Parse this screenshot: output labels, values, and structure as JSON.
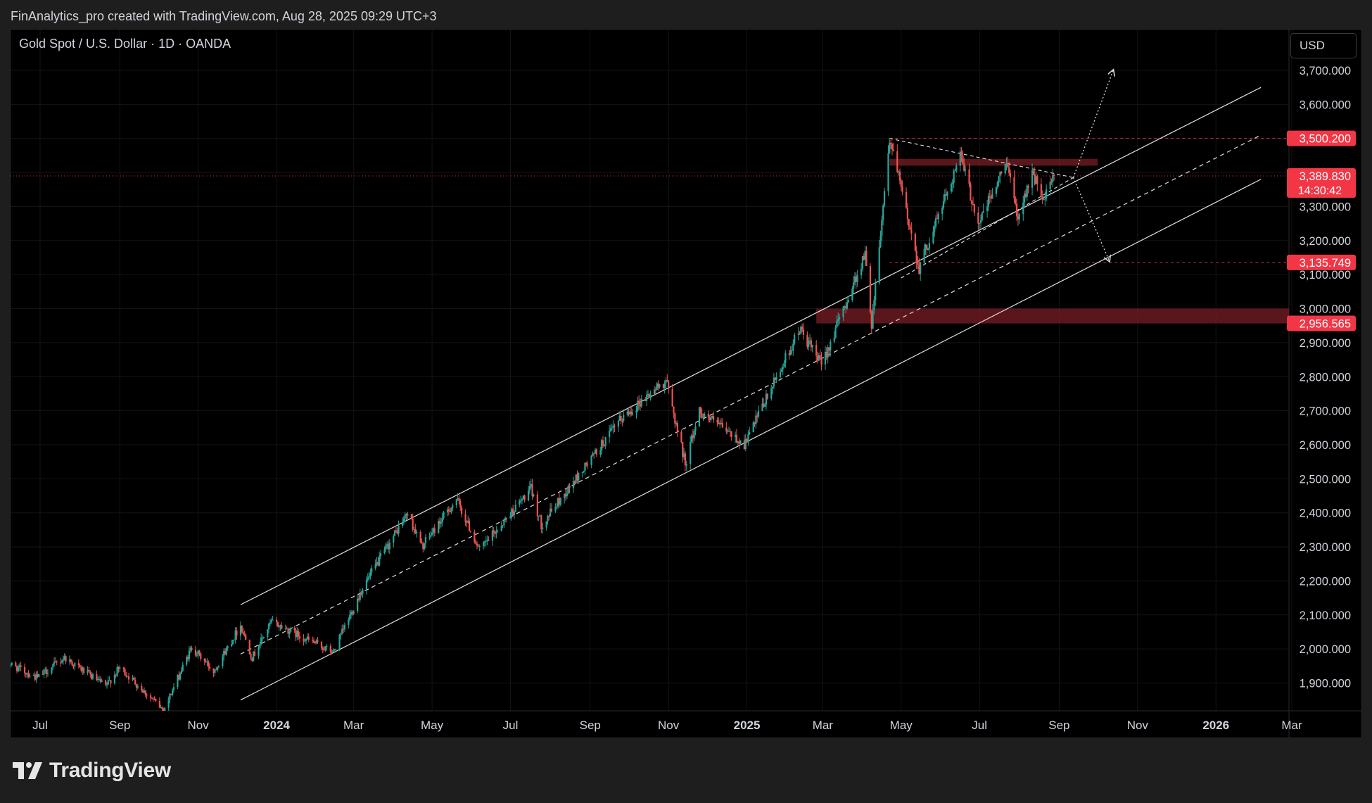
{
  "header": {
    "attribution": "FinAnalytics_pro created with TradingView.com, Aug 28, 2025 09:29 UTC+3"
  },
  "symbol": {
    "label": "Gold Spot / U.S. Dollar · 1D · OANDA"
  },
  "toolbar": {
    "currency_label": "USD"
  },
  "footer": {
    "brand": "TradingView"
  },
  "colors": {
    "background": "#000000",
    "frame": "#1e1e1e",
    "up_candle": "#26a69a",
    "down_candle": "#ef5350",
    "tag_red": "#f23645",
    "zone_red": "#7a1d25",
    "channel": "#e0e0e0",
    "grid": "#141414"
  },
  "chart_data": {
    "type": "candlestick",
    "title": "Gold Spot / U.S. Dollar · 1D · OANDA",
    "currency": "USD",
    "y_axis": {
      "ticks": [
        1900,
        2000,
        2100,
        2200,
        2300,
        2400,
        2500,
        2600,
        2700,
        2800,
        2900,
        3000,
        3100,
        3200,
        3300,
        3400,
        3500,
        3600,
        3700
      ],
      "tick_labels": [
        "1,900.000",
        "2,000.000",
        "2,100.000",
        "2,200.000",
        "2,300.000",
        "2,400.000",
        "2,500.000",
        "2,600.000",
        "2,700.000",
        "2,800.000",
        "2,900.000",
        "3,000.000",
        "3,100.000",
        "3,200.000",
        "3,300.000",
        "3,400.000",
        "3,500.000",
        "3,600.000",
        "3,700.000"
      ],
      "range": [
        1825,
        3750
      ]
    },
    "x_axis": {
      "tick_labels": [
        {
          "date": "2023-07-01",
          "label": "Jul",
          "bold": false
        },
        {
          "date": "2023-09-01",
          "label": "Sep",
          "bold": false
        },
        {
          "date": "2023-11-01",
          "label": "Nov",
          "bold": false
        },
        {
          "date": "2024-01-01",
          "label": "2024",
          "bold": true
        },
        {
          "date": "2024-03-01",
          "label": "Mar",
          "bold": false
        },
        {
          "date": "2024-05-01",
          "label": "May",
          "bold": false
        },
        {
          "date": "2024-07-01",
          "label": "Jul",
          "bold": false
        },
        {
          "date": "2024-09-01",
          "label": "Sep",
          "bold": false
        },
        {
          "date": "2024-11-01",
          "label": "Nov",
          "bold": false
        },
        {
          "date": "2025-01-01",
          "label": "2025",
          "bold": true
        },
        {
          "date": "2025-03-01",
          "label": "Mar",
          "bold": false
        },
        {
          "date": "2025-05-01",
          "label": "May",
          "bold": false
        },
        {
          "date": "2025-07-01",
          "label": "Jul",
          "bold": false
        },
        {
          "date": "2025-09-01",
          "label": "Sep",
          "bold": false
        },
        {
          "date": "2025-11-01",
          "label": "Nov",
          "bold": false
        },
        {
          "date": "2026-01-01",
          "label": "2026",
          "bold": true
        },
        {
          "date": "2026-03-01",
          "label": "Mar",
          "bold": false
        }
      ]
    },
    "price_path": [
      {
        "date": "2023-06-05",
        "price": 1960
      },
      {
        "date": "2023-06-29",
        "price": 1915
      },
      {
        "date": "2023-07-20",
        "price": 1975
      },
      {
        "date": "2023-08-21",
        "price": 1890
      },
      {
        "date": "2023-09-01",
        "price": 1945
      },
      {
        "date": "2023-10-05",
        "price": 1820
      },
      {
        "date": "2023-10-27",
        "price": 2005
      },
      {
        "date": "2023-11-13",
        "price": 1935
      },
      {
        "date": "2023-12-04",
        "price": 2070
      },
      {
        "date": "2023-12-13",
        "price": 1975
      },
      {
        "date": "2023-12-28",
        "price": 2080
      },
      {
        "date": "2024-02-14",
        "price": 1990
      },
      {
        "date": "2024-03-08",
        "price": 2180
      },
      {
        "date": "2024-04-12",
        "price": 2400
      },
      {
        "date": "2024-04-23",
        "price": 2300
      },
      {
        "date": "2024-05-20",
        "price": 2440
      },
      {
        "date": "2024-06-07",
        "price": 2290
      },
      {
        "date": "2024-07-17",
        "price": 2470
      },
      {
        "date": "2024-07-25",
        "price": 2365
      },
      {
        "date": "2024-09-26",
        "price": 2680
      },
      {
        "date": "2024-10-30",
        "price": 2790
      },
      {
        "date": "2024-11-14",
        "price": 2545
      },
      {
        "date": "2024-11-25",
        "price": 2700
      },
      {
        "date": "2024-12-30",
        "price": 2600
      },
      {
        "date": "2025-02-11",
        "price": 2940
      },
      {
        "date": "2025-02-28",
        "price": 2835
      },
      {
        "date": "2025-04-03",
        "price": 3160
      },
      {
        "date": "2025-04-08",
        "price": 2957
      },
      {
        "date": "2025-04-22",
        "price": 3500
      },
      {
        "date": "2025-05-15",
        "price": 3120
      },
      {
        "date": "2025-06-16",
        "price": 3450
      },
      {
        "date": "2025-06-30",
        "price": 3250
      },
      {
        "date": "2025-07-23",
        "price": 3435
      },
      {
        "date": "2025-07-30",
        "price": 3268
      },
      {
        "date": "2025-08-11",
        "price": 3400
      },
      {
        "date": "2025-08-20",
        "price": 3315
      },
      {
        "date": "2025-08-28",
        "price": 3389.83
      }
    ],
    "price_tags": [
      {
        "price": 3500.2,
        "label": "3,500.200",
        "line": "dashed"
      },
      {
        "price": 3389.83,
        "label": "3,389.830",
        "sublabel": "14:30:42",
        "line": "dotted",
        "current": true
      },
      {
        "price": 3135.749,
        "label": "3,135.749",
        "line": "dashed"
      },
      {
        "price": 2956.565,
        "label": "2,956.565",
        "line": "none"
      }
    ],
    "zones": [
      {
        "name": "resistance-zone",
        "from": "2025-04-22",
        "to": "2025-10-01",
        "low": 3420,
        "high": 3440
      },
      {
        "name": "support-zone",
        "from": "2025-02-24",
        "to": "2026-03-31",
        "low": 2956.565,
        "high": 3000
      }
    ],
    "channel": {
      "upper": [
        {
          "date": "2023-12-04",
          "price": 2130
        },
        {
          "date": "2026-02-05",
          "price": 3650
        }
      ],
      "middle": [
        {
          "date": "2023-12-04",
          "price": 1985
        },
        {
          "date": "2026-02-05",
          "price": 3510
        }
      ],
      "lower": [
        {
          "date": "2023-12-04",
          "price": 1850
        },
        {
          "date": "2026-02-05",
          "price": 3380
        }
      ]
    },
    "triangle": {
      "upper": [
        {
          "date": "2025-04-22",
          "price": 3500
        },
        {
          "date": "2025-09-12",
          "price": 3385
        }
      ],
      "lower": [
        {
          "date": "2025-05-01",
          "price": 3090
        },
        {
          "date": "2025-09-12",
          "price": 3385
        }
      ]
    },
    "scenario_arrows": [
      {
        "name": "bullish",
        "from": {
          "date": "2025-09-12",
          "price": 3385
        },
        "to": {
          "date": "2025-10-13",
          "price": 3700
        }
      },
      {
        "name": "bearish",
        "from": {
          "date": "2025-09-12",
          "price": 3385
        },
        "to": {
          "date": "2025-10-10",
          "price": 3140
        }
      }
    ]
  }
}
